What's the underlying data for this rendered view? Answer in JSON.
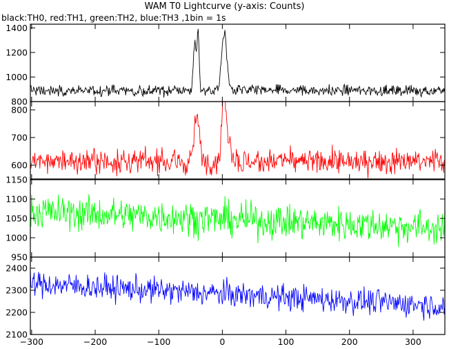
{
  "title": "WAM T0 Lightcurve (y-axis: Counts)",
  "subtitle": "black:TH0, red:TH1, green:TH2, blue:TH3 ,1bin = 1s",
  "chart_data": {
    "type": "line",
    "x_ticks": [
      -300,
      -200,
      -100,
      0,
      100,
      200,
      300
    ],
    "xlim": [
      -302,
      350
    ],
    "panels": [
      {
        "name": "TH0",
        "color": "#000000",
        "ylim": [
          800,
          1430
        ],
        "y_ticks": [
          800,
          1000,
          1200,
          1400
        ],
        "baseline": 890,
        "noise": 42,
        "peaks": [
          {
            "x": -43,
            "height": 360,
            "width": 2.5
          },
          {
            "x": -38,
            "height": 460,
            "width": 1.5
          },
          {
            "x": 3,
            "height": 450,
            "width": 4
          }
        ]
      },
      {
        "name": "TH1",
        "color": "#ff0000",
        "ylim": [
          550,
          830
        ],
        "y_ticks": [
          600,
          700,
          800
        ],
        "baseline": 612,
        "noise": 42,
        "peaks": [
          {
            "x": -40,
            "height": 160,
            "width": 4
          },
          {
            "x": 2,
            "height": 200,
            "width": 3
          },
          {
            "x": 8,
            "height": 90,
            "width": 6
          }
        ]
      },
      {
        "name": "TH2",
        "color": "#00ff00",
        "ylim": [
          950,
          1150
        ],
        "y_ticks": [
          950,
          1000,
          1050,
          1100,
          1150
        ],
        "baseline_start": 1068,
        "baseline_end": 1025,
        "noise": 42,
        "peaks": []
      },
      {
        "name": "TH3",
        "color": "#0000ff",
        "ylim": [
          2100,
          2450
        ],
        "y_ticks": [
          2100,
          2200,
          2300,
          2400
        ],
        "baseline_start": 2330,
        "baseline_end": 2230,
        "noise": 55,
        "peaks": []
      }
    ]
  }
}
